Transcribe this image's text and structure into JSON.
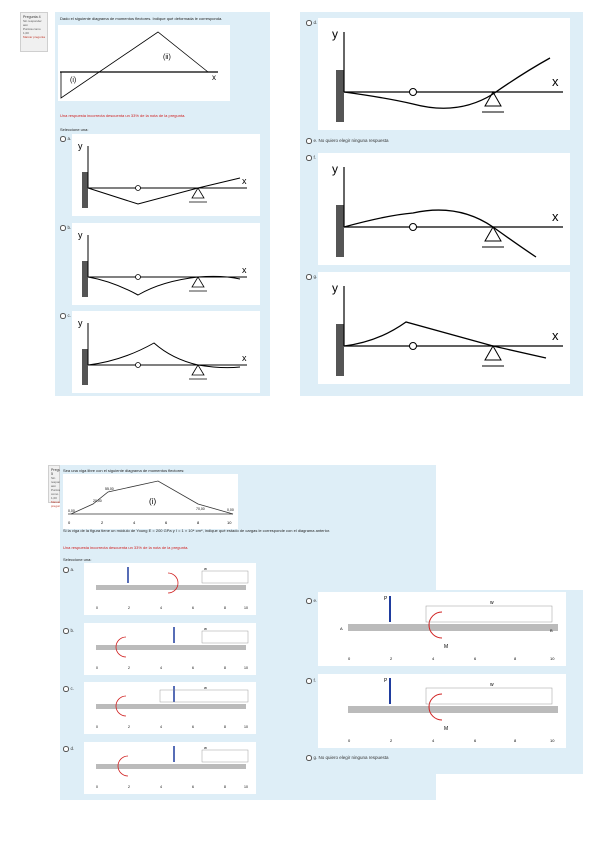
{
  "q1": {
    "info": {
      "number": "Pregunta 4",
      "status": "Sin responder aún",
      "points": "Puntúa como 1,00",
      "flag": "Marcar pregunta"
    },
    "prompt": "Dado el siguiente diagrama de momentos flectores. Indique qué deformada le corresponda.",
    "warning": "Una respuesta incorrecta descuenta un 33% de la nota de la pregunta.",
    "select_label": "Seleccione una:",
    "moment_regions": [
      "(i)",
      "(ii)"
    ],
    "options": {
      "a": "a.",
      "b": "b.",
      "c": "c.",
      "d": "d.",
      "e": "e. No quiero elegir ninguna respuesta",
      "f": "f.",
      "g": "g."
    },
    "axis_x": "x",
    "axis_y": "y"
  },
  "q2": {
    "info": {
      "number": "Pregunta 5",
      "status": "Sin responder aún",
      "points": "Puntúa como 1,00",
      "flag": "Marcar pregunta"
    },
    "prompt1": "Sea una viga libre con el siguiente diagrama de momentos flectores:",
    "prompt2": "Si la viga de la figura tiene un módulo de Young E = 200 GPa y I = 1 × 10⁴ cm⁴, indique qué estado de cargas le corresponde con el diagrama anterior.",
    "warning": "Una respuesta incorrecta descuenta un 33% de la nota de la pregunta.",
    "select_label": "Seleccione una:",
    "diagram_labels": [
      "0,00",
      "20,00",
      "55,00",
      "70,00",
      "0,00"
    ],
    "region": "(i)",
    "diagram_ticks": [
      "0",
      "2",
      "4",
      "6",
      "8",
      "10"
    ],
    "options": {
      "a": "a.",
      "b": "b.",
      "c": "c.",
      "d": "d.",
      "e": "e.",
      "f": "f.",
      "g": "g. No quiero elegir ninguna respuesta"
    },
    "load_labels": {
      "P": "P",
      "M": "M",
      "w": "w",
      "A": "A",
      "B": "B"
    },
    "ticks": [
      "0",
      "2",
      "4",
      "6",
      "8",
      "10"
    ]
  }
}
